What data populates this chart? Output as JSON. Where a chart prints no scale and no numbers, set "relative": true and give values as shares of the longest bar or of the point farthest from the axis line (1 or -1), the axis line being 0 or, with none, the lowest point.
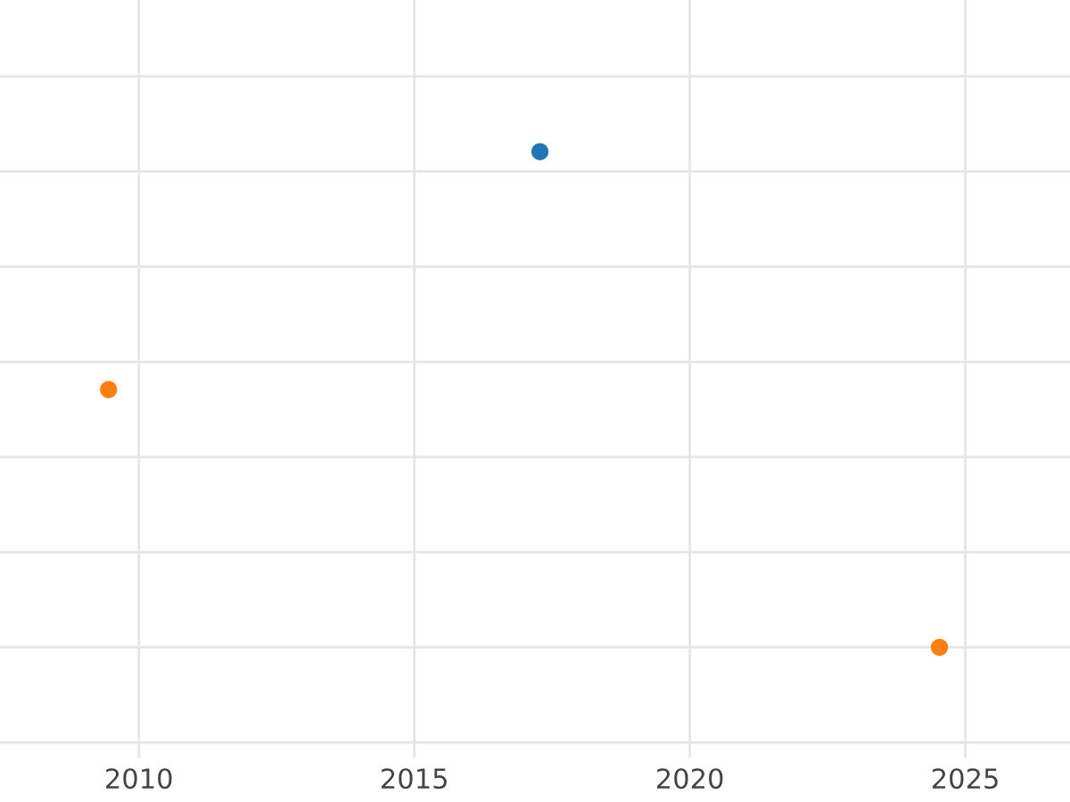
{
  "chart_data": {
    "type": "scatter",
    "relative": true,
    "grid": true,
    "marker": "circle",
    "xlim": [
      2007.48,
      2026.9
    ],
    "xticks": [
      2010,
      2015,
      2020,
      2025
    ],
    "series": [
      {
        "color": "#1f77b4",
        "x": [
          2017.28
        ],
        "values": [
          1
        ]
      },
      {
        "color": "#ff7f0e",
        "x": [
          2009.45,
          2024.53
        ],
        "values": [
          0.52,
          0
        ]
      }
    ]
  }
}
